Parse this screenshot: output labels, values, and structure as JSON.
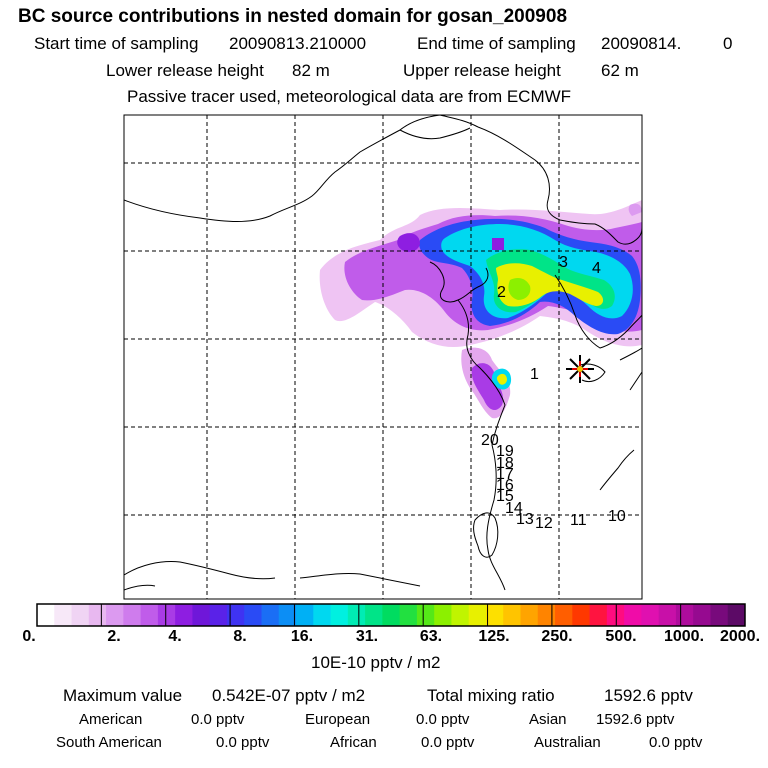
{
  "header": {
    "title": "BC  source contributions in nested domain for gosan_200908",
    "start_label": "Start time of sampling",
    "start_value": "20090813.210000",
    "end_label": "End time of sampling",
    "end_value": "20090814.",
    "end_suffix": "0",
    "lower_label": "Lower release height",
    "lower_value": "82 m",
    "upper_label": "Upper release height",
    "upper_value": "62 m",
    "tracer_note": "Passive tracer used, meteorological data are from ECMWF"
  },
  "map": {
    "receptor_marker": "star-receptor-icon",
    "region_labels": [
      "1",
      "2",
      "3",
      "4"
    ],
    "trajectory_labels": [
      "20",
      "19",
      "18",
      "17",
      "16",
      "15",
      "14",
      "13",
      "12",
      "11",
      "10"
    ]
  },
  "colorbar": {
    "colors": [
      "#ffffff",
      "#f7e8f8",
      "#f0d4f4",
      "#e8b8f0",
      "#dc9af0",
      "#cf7ced",
      "#c05cea",
      "#a93be6",
      "#8e1ee1",
      "#6f17d9",
      "#5a22e8",
      "#3f33f2",
      "#2a4bf5",
      "#1a6ef5",
      "#0c8ef5",
      "#00b0f5",
      "#00d8f0",
      "#00f0e0",
      "#00ecb4",
      "#00e488",
      "#00dc60",
      "#22e040",
      "#55e818",
      "#8cf000",
      "#c0f400",
      "#e8f000",
      "#fde000",
      "#ffc400",
      "#ffa400",
      "#ff8400",
      "#ff5e00",
      "#ff3800",
      "#ff1440",
      "#ff0c80",
      "#f00ca8",
      "#e010b0",
      "#c810a8",
      "#ae0c9c",
      "#960a90",
      "#780a7c",
      "#5c0a66"
    ],
    "tick_labels": [
      "0.",
      "2.",
      "4.",
      "8.",
      "16.",
      "31.",
      "63.",
      "125.",
      "250.",
      "500.",
      "1000.",
      "2000."
    ],
    "units": "10E-10 pptv / m2"
  },
  "stats": {
    "max_label": "Maximum value",
    "max_value": "0.542E-07 pptv / m2",
    "total_label": "Total mixing ratio",
    "total_value": "1592.6 pptv",
    "rows": [
      [
        {
          "name": "American",
          "value": "0.0 pptv"
        },
        {
          "name": "European",
          "value": "0.0 pptv"
        },
        {
          "name": "Asian",
          "value": "1592.6 pptv"
        }
      ],
      [
        {
          "name": "South American",
          "value": "0.0 pptv"
        },
        {
          "name": "African",
          "value": "0.0 pptv"
        },
        {
          "name": "Australian",
          "value": "0.0 pptv"
        }
      ]
    ]
  }
}
